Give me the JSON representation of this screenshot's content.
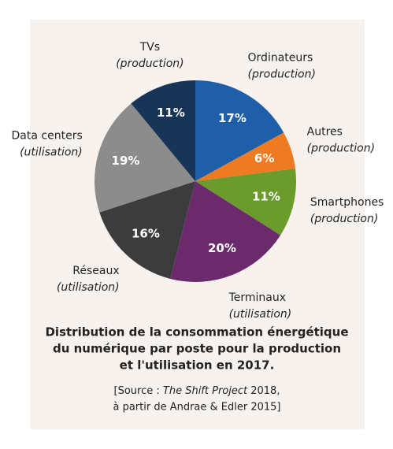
{
  "chart_data": {
    "type": "pie",
    "categories": [
      "Ordinateurs",
      "Autres",
      "Smartphones",
      "Terminaux",
      "Réseaux",
      "Data centers",
      "TVs"
    ],
    "category_notes": [
      "(production)",
      "(production)",
      "(production)",
      "(utilisation)",
      "(utilisation)",
      "(utilisation)",
      "(production)"
    ],
    "values": [
      17,
      6,
      11,
      20,
      16,
      19,
      11
    ],
    "value_labels": [
      "17%",
      "6%",
      "11%",
      "20%",
      "16%",
      "19%",
      "11%"
    ],
    "colors": [
      "#1f5ea8",
      "#ee7b22",
      "#6a9b2b",
      "#6a2a6c",
      "#3c3c3c",
      "#8c8c8c",
      "#183457"
    ],
    "title": [
      "Distribution de la consommation énergétique",
      "du numérique par poste pour la production",
      "et l'utilisation en 2017."
    ],
    "source": {
      "line1": [
        "[Source : ",
        "The Shift Project",
        " 2018,"
      ],
      "line2": "à partir de Andrae & Edler 2015]"
    }
  }
}
